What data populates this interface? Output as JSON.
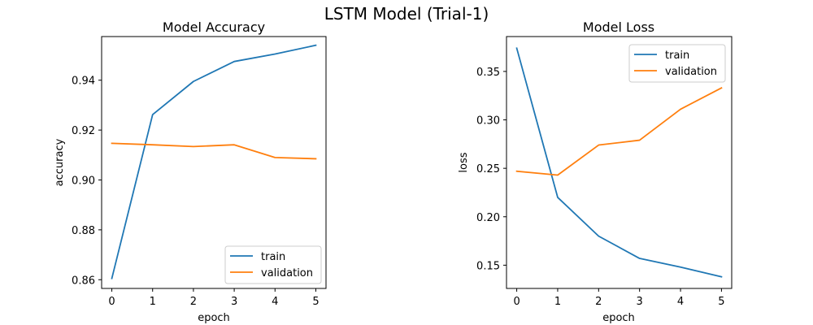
{
  "figure": {
    "title": "LSTM Model (Trial-1)"
  },
  "colors": {
    "train": "#1f77b4",
    "validation": "#ff7f0e"
  },
  "chart_data": [
    {
      "type": "line",
      "title": "Model Accuracy",
      "xlabel": "epoch",
      "ylabel": "accuracy",
      "x": [
        0,
        1,
        2,
        3,
        4,
        5
      ],
      "xticks": [
        "0",
        "1",
        "2",
        "3",
        "4",
        "5"
      ],
      "yticks": [
        "0.86",
        "0.88",
        "0.90",
        "0.92",
        "0.94"
      ],
      "xlim": [
        -0.25,
        5.25
      ],
      "ylim": [
        0.8565,
        0.9575
      ],
      "series": [
        {
          "name": "train",
          "color": "#1f77b4",
          "values": [
            0.8605,
            0.9262,
            0.9395,
            0.9475,
            0.9505,
            0.954
          ]
        },
        {
          "name": "validation",
          "color": "#ff7f0e",
          "values": [
            0.9147,
            0.9141,
            0.9134,
            0.9141,
            0.909,
            0.9085
          ]
        }
      ],
      "legend": "lower right",
      "grid": false
    },
    {
      "type": "line",
      "title": "Model Loss",
      "xlabel": "epoch",
      "ylabel": "loss",
      "x": [
        0,
        1,
        2,
        3,
        4,
        5
      ],
      "xticks": [
        "0",
        "1",
        "2",
        "3",
        "4",
        "5"
      ],
      "yticks": [
        "0.15",
        "0.20",
        "0.25",
        "0.30",
        "0.35"
      ],
      "xlim": [
        -0.25,
        5.25
      ],
      "ylim": [
        0.126,
        0.386
      ],
      "series": [
        {
          "name": "train",
          "color": "#1f77b4",
          "values": [
            0.374,
            0.22,
            0.18,
            0.157,
            0.148,
            0.138
          ]
        },
        {
          "name": "validation",
          "color": "#ff7f0e",
          "values": [
            0.247,
            0.243,
            0.274,
            0.279,
            0.311,
            0.333
          ]
        }
      ],
      "legend": "upper right",
      "grid": false
    }
  ]
}
